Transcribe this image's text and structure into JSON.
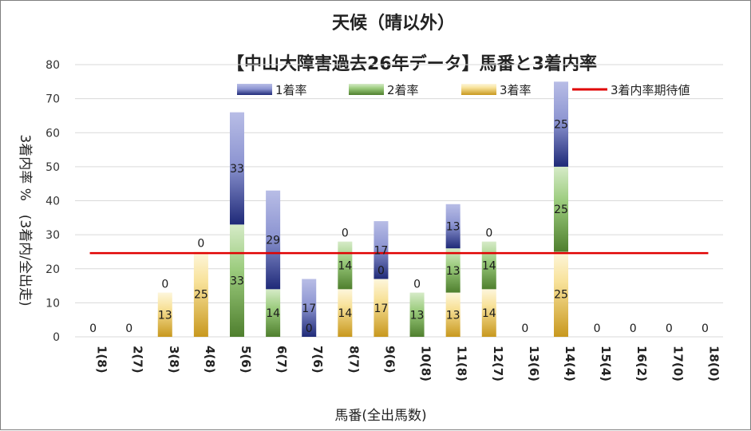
{
  "chart_data": {
    "type": "bar",
    "stacked": true,
    "title_line1": "天候（晴以外）",
    "title_line2": "【中山大障害過去26年データ】馬番と3着内率",
    "xlabel": "馬番(全出馬数)",
    "ylabel": "3着内率 %　(3着内/全出走)",
    "ylim": [
      0,
      80
    ],
    "yticks": [
      0,
      10,
      20,
      30,
      40,
      50,
      60,
      70,
      80
    ],
    "ytick_labels": [
      "0",
      "10",
      "20",
      "30",
      "40",
      "50",
      "60",
      "70",
      "80"
    ],
    "grid": true,
    "legend_position": "top",
    "categories": [
      "1(8)",
      "2(7)",
      "3(8)",
      "4(8)",
      "5(6)",
      "6(7)",
      "7(6)",
      "8(7)",
      "9(6)",
      "10(8)",
      "11(8)",
      "12(7)",
      "13(6)",
      "14(4)",
      "15(4)",
      "16(2)",
      "17(0)",
      "18(0)"
    ],
    "series": [
      {
        "name": "3着率",
        "color": "#c8a040",
        "values": [
          0,
          0,
          13,
          25,
          0,
          0,
          0,
          14,
          17,
          0,
          13,
          14,
          0,
          25,
          0,
          0,
          0,
          0
        ],
        "labels": [
          "",
          "",
          "13",
          "25",
          "",
          "",
          "",
          "14",
          "17",
          "",
          "13",
          "14",
          "",
          "25",
          "",
          "",
          "",
          ""
        ]
      },
      {
        "name": "2着率",
        "color": "#5e8f3e",
        "values": [
          0,
          0,
          0,
          0,
          33,
          14,
          0,
          14,
          0,
          13,
          13,
          14,
          0,
          25,
          0,
          0,
          0,
          0
        ],
        "labels": [
          "",
          "",
          "0",
          "0",
          "33",
          "14",
          "0",
          "14",
          "0",
          "13",
          "13",
          "14",
          "",
          "25",
          "",
          "",
          "",
          ""
        ]
      },
      {
        "name": "1着率",
        "color": "#2e3a82",
        "values": [
          0,
          0,
          0,
          0,
          33,
          29,
          17,
          0,
          17,
          0,
          13,
          0,
          0,
          25,
          0,
          0,
          0,
          0
        ],
        "labels": [
          "0",
          "0",
          "",
          "",
          "33",
          "29",
          "17",
          "0",
          "17",
          "0",
          "13",
          "0",
          "0",
          "25",
          "0",
          "0",
          "0",
          "0"
        ]
      }
    ],
    "reference_line": {
      "name": "3着内率期待値",
      "value": 24.6,
      "color": "#e00000"
    }
  }
}
